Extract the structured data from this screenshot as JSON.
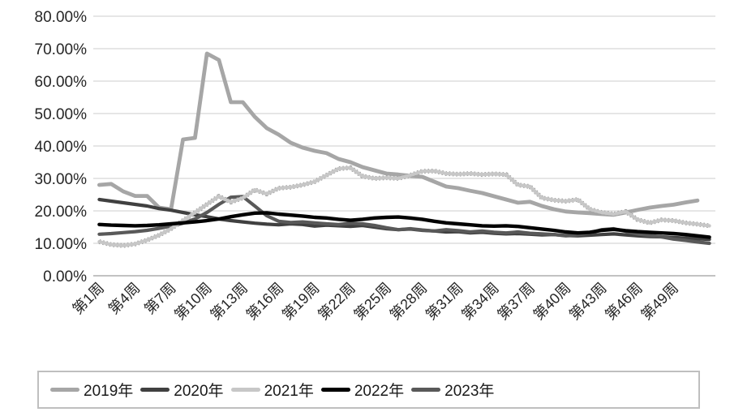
{
  "chart_data": {
    "type": "line",
    "title": "",
    "xlabel": "",
    "ylabel": "",
    "weeks": 52,
    "ylim": [
      0,
      80
    ],
    "y_tick_step": 10,
    "y_tick_labels": [
      "0.00%",
      "10.00%",
      "20.00%",
      "30.00%",
      "40.00%",
      "50.00%",
      "60.00%",
      "70.00%",
      "80.00%"
    ],
    "x_tick_labels": [
      "第1周",
      "第4周",
      "第7周",
      "第10周",
      "第13周",
      "第16周",
      "第19周",
      "第22周",
      "第25周",
      "第28周",
      "第31周",
      "第34周",
      "第37周",
      "第40周",
      "第43周",
      "第46周",
      "第49周"
    ],
    "x_tick_week_indexes": [
      0,
      3,
      6,
      9,
      12,
      15,
      18,
      21,
      24,
      27,
      30,
      33,
      36,
      39,
      42,
      45,
      48
    ],
    "grid": "horizontal",
    "legend_position": "bottom",
    "colors": {
      "grid": "#d6d6d6",
      "axis": "#aeaeae",
      "text": "#262626",
      "legend_border": "#bfbfbf"
    },
    "series": [
      {
        "name": "2019年",
        "color": "#a6a6a6",
        "width": 4.8,
        "values": [
          28,
          28.3,
          26,
          24.6,
          24.6,
          21,
          20.5,
          42,
          42.5,
          68.5,
          66.5,
          53.5,
          53.5,
          49,
          45.5,
          43.5,
          41,
          39.5,
          38.5,
          37.8,
          36,
          35,
          33.5,
          32.5,
          31.5,
          31.2,
          30.8,
          30.5,
          29,
          27.5,
          27,
          26.2,
          25.5,
          24.5,
          23.5,
          22.5,
          22.8,
          21.5,
          20.5,
          19.8,
          19.5,
          19.3,
          19,
          18.8,
          19.5,
          20.3,
          21,
          21.5,
          21.9,
          22.6,
          23.2,
          null
        ]
      },
      {
        "name": "2020年",
        "color": "#404040",
        "width": 4.2,
        "values": [
          23.5,
          23,
          22.5,
          22,
          21.5,
          20.7,
          20.2,
          19.5,
          18.8,
          18.2,
          17.5,
          17,
          16.6,
          16.2,
          15.9,
          15.7,
          16,
          15.8,
          15.3,
          15.6,
          15.4,
          15.2,
          15.5,
          15,
          14.5,
          14.2,
          14.4,
          14,
          13.8,
          13.5,
          13.6,
          13.2,
          13.4,
          13.1,
          12.9,
          13,
          12.8,
          12.6,
          12.7,
          12.4,
          12.3,
          12.5,
          12.7,
          12.9,
          12.6,
          12.3,
          12.1,
          12,
          11.8,
          11.6,
          11.4,
          11.2
        ]
      },
      {
        "name": "2021年",
        "color": "#c7c7c7",
        "width": 4.2,
        "dotted_edge": true,
        "values": [
          10.5,
          9.6,
          9.3,
          9.8,
          11,
          12.5,
          14.5,
          17,
          19.5,
          22,
          24.5,
          22.7,
          24,
          26.5,
          25.2,
          27,
          27.3,
          28,
          29,
          31,
          33,
          33.3,
          30.7,
          30,
          30.2,
          30,
          31,
          32.2,
          32.3,
          31.5,
          31.3,
          31.5,
          31.2,
          31.4,
          31.2,
          28,
          27.5,
          24,
          23.3,
          23,
          23.5,
          20.5,
          19.5,
          19,
          19.8,
          17.3,
          16.3,
          17.2,
          17,
          16.3,
          15.9,
          15.4
        ]
      },
      {
        "name": "2022年",
        "color": "#000000",
        "width": 4.4,
        "values": [
          15.8,
          15.6,
          15.5,
          15.4,
          15.5,
          15.7,
          16,
          16.3,
          16.6,
          17,
          17.5,
          18.2,
          18.8,
          19.3,
          19.4,
          19,
          18.7,
          18.4,
          18,
          17.8,
          17.4,
          17.1,
          17.4,
          17.8,
          18,
          18.1,
          17.8,
          17.4,
          16.8,
          16.3,
          16,
          15.7,
          15.4,
          15.3,
          15.4,
          15.2,
          14.8,
          14.4,
          14,
          13.5,
          13.2,
          13.4,
          14,
          14.3,
          13.9,
          13.6,
          13.4,
          13.2,
          13,
          12.7,
          12.3,
          11.9
        ]
      },
      {
        "name": "2023年",
        "color": "#595959",
        "width": 4.2,
        "values": [
          12.8,
          13,
          13.3,
          13.6,
          14,
          14.6,
          15.3,
          16.2,
          17.5,
          19.5,
          22,
          24.2,
          24.4,
          21.5,
          18.5,
          16.8,
          16.4,
          16.6,
          16.3,
          16,
          15.8,
          16.2,
          16,
          15.5,
          14.8,
          14.2,
          14.5,
          14.1,
          13.8,
          14.2,
          13.9,
          13.5,
          13.8,
          13.4,
          13.2,
          13.5,
          13.1,
          12.9,
          12.7,
          12.3,
          12.6,
          13.2,
          14.2,
          14.5,
          13.7,
          12.9,
          12.4,
          12,
          11.3,
          10.9,
          10.4,
          10
        ]
      }
    ]
  },
  "legend": {
    "items": [
      {
        "label": "2019年",
        "color": "#a6a6a6"
      },
      {
        "label": "2020年",
        "color": "#404040"
      },
      {
        "label": "2021年",
        "color": "#c7c7c7"
      },
      {
        "label": "2022年",
        "color": "#000000"
      },
      {
        "label": "2023年",
        "color": "#595959"
      }
    ]
  }
}
